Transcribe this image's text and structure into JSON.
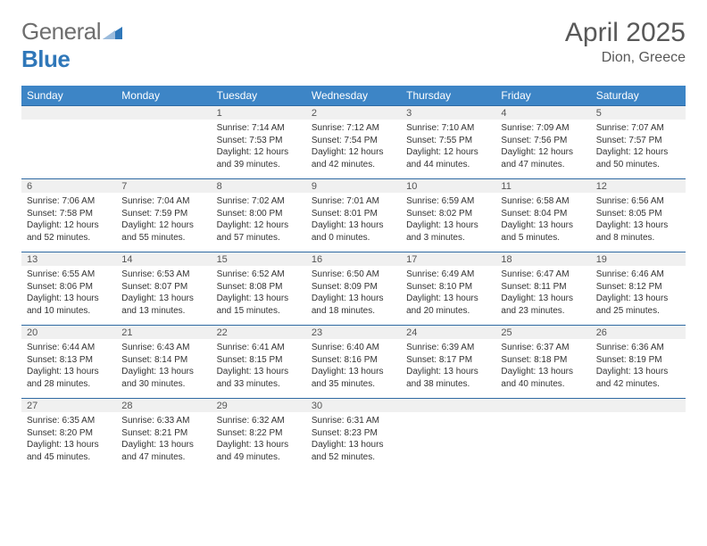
{
  "brand": {
    "name_part1": "General",
    "name_part2": "Blue"
  },
  "title": "April 2025",
  "location": "Dion, Greece",
  "colors": {
    "header_bg": "#3d85c6",
    "header_text": "#ffffff",
    "daynum_bg": "#f0f0f0",
    "logo_blue": "#2f77b9",
    "logo_gray": "#6e6e6e",
    "cell_border": "#2f6aa3"
  },
  "typography": {
    "month_title_size": 30,
    "location_size": 16,
    "weekday_size": 12,
    "daynum_size": 11,
    "body_size": 10
  },
  "weekdays": [
    "Sunday",
    "Monday",
    "Tuesday",
    "Wednesday",
    "Thursday",
    "Friday",
    "Saturday"
  ],
  "grid": [
    [
      {
        "empty": true
      },
      {
        "empty": true
      },
      {
        "day": "1",
        "sunrise": "Sunrise: 7:14 AM",
        "sunset": "Sunset: 7:53 PM",
        "daylight": "Daylight: 12 hours and 39 minutes."
      },
      {
        "day": "2",
        "sunrise": "Sunrise: 7:12 AM",
        "sunset": "Sunset: 7:54 PM",
        "daylight": "Daylight: 12 hours and 42 minutes."
      },
      {
        "day": "3",
        "sunrise": "Sunrise: 7:10 AM",
        "sunset": "Sunset: 7:55 PM",
        "daylight": "Daylight: 12 hours and 44 minutes."
      },
      {
        "day": "4",
        "sunrise": "Sunrise: 7:09 AM",
        "sunset": "Sunset: 7:56 PM",
        "daylight": "Daylight: 12 hours and 47 minutes."
      },
      {
        "day": "5",
        "sunrise": "Sunrise: 7:07 AM",
        "sunset": "Sunset: 7:57 PM",
        "daylight": "Daylight: 12 hours and 50 minutes."
      }
    ],
    [
      {
        "day": "6",
        "sunrise": "Sunrise: 7:06 AM",
        "sunset": "Sunset: 7:58 PM",
        "daylight": "Daylight: 12 hours and 52 minutes."
      },
      {
        "day": "7",
        "sunrise": "Sunrise: 7:04 AM",
        "sunset": "Sunset: 7:59 PM",
        "daylight": "Daylight: 12 hours and 55 minutes."
      },
      {
        "day": "8",
        "sunrise": "Sunrise: 7:02 AM",
        "sunset": "Sunset: 8:00 PM",
        "daylight": "Daylight: 12 hours and 57 minutes."
      },
      {
        "day": "9",
        "sunrise": "Sunrise: 7:01 AM",
        "sunset": "Sunset: 8:01 PM",
        "daylight": "Daylight: 13 hours and 0 minutes."
      },
      {
        "day": "10",
        "sunrise": "Sunrise: 6:59 AM",
        "sunset": "Sunset: 8:02 PM",
        "daylight": "Daylight: 13 hours and 3 minutes."
      },
      {
        "day": "11",
        "sunrise": "Sunrise: 6:58 AM",
        "sunset": "Sunset: 8:04 PM",
        "daylight": "Daylight: 13 hours and 5 minutes."
      },
      {
        "day": "12",
        "sunrise": "Sunrise: 6:56 AM",
        "sunset": "Sunset: 8:05 PM",
        "daylight": "Daylight: 13 hours and 8 minutes."
      }
    ],
    [
      {
        "day": "13",
        "sunrise": "Sunrise: 6:55 AM",
        "sunset": "Sunset: 8:06 PM",
        "daylight": "Daylight: 13 hours and 10 minutes."
      },
      {
        "day": "14",
        "sunrise": "Sunrise: 6:53 AM",
        "sunset": "Sunset: 8:07 PM",
        "daylight": "Daylight: 13 hours and 13 minutes."
      },
      {
        "day": "15",
        "sunrise": "Sunrise: 6:52 AM",
        "sunset": "Sunset: 8:08 PM",
        "daylight": "Daylight: 13 hours and 15 minutes."
      },
      {
        "day": "16",
        "sunrise": "Sunrise: 6:50 AM",
        "sunset": "Sunset: 8:09 PM",
        "daylight": "Daylight: 13 hours and 18 minutes."
      },
      {
        "day": "17",
        "sunrise": "Sunrise: 6:49 AM",
        "sunset": "Sunset: 8:10 PM",
        "daylight": "Daylight: 13 hours and 20 minutes."
      },
      {
        "day": "18",
        "sunrise": "Sunrise: 6:47 AM",
        "sunset": "Sunset: 8:11 PM",
        "daylight": "Daylight: 13 hours and 23 minutes."
      },
      {
        "day": "19",
        "sunrise": "Sunrise: 6:46 AM",
        "sunset": "Sunset: 8:12 PM",
        "daylight": "Daylight: 13 hours and 25 minutes."
      }
    ],
    [
      {
        "day": "20",
        "sunrise": "Sunrise: 6:44 AM",
        "sunset": "Sunset: 8:13 PM",
        "daylight": "Daylight: 13 hours and 28 minutes."
      },
      {
        "day": "21",
        "sunrise": "Sunrise: 6:43 AM",
        "sunset": "Sunset: 8:14 PM",
        "daylight": "Daylight: 13 hours and 30 minutes."
      },
      {
        "day": "22",
        "sunrise": "Sunrise: 6:41 AM",
        "sunset": "Sunset: 8:15 PM",
        "daylight": "Daylight: 13 hours and 33 minutes."
      },
      {
        "day": "23",
        "sunrise": "Sunrise: 6:40 AM",
        "sunset": "Sunset: 8:16 PM",
        "daylight": "Daylight: 13 hours and 35 minutes."
      },
      {
        "day": "24",
        "sunrise": "Sunrise: 6:39 AM",
        "sunset": "Sunset: 8:17 PM",
        "daylight": "Daylight: 13 hours and 38 minutes."
      },
      {
        "day": "25",
        "sunrise": "Sunrise: 6:37 AM",
        "sunset": "Sunset: 8:18 PM",
        "daylight": "Daylight: 13 hours and 40 minutes."
      },
      {
        "day": "26",
        "sunrise": "Sunrise: 6:36 AM",
        "sunset": "Sunset: 8:19 PM",
        "daylight": "Daylight: 13 hours and 42 minutes."
      }
    ],
    [
      {
        "day": "27",
        "sunrise": "Sunrise: 6:35 AM",
        "sunset": "Sunset: 8:20 PM",
        "daylight": "Daylight: 13 hours and 45 minutes."
      },
      {
        "day": "28",
        "sunrise": "Sunrise: 6:33 AM",
        "sunset": "Sunset: 8:21 PM",
        "daylight": "Daylight: 13 hours and 47 minutes."
      },
      {
        "day": "29",
        "sunrise": "Sunrise: 6:32 AM",
        "sunset": "Sunset: 8:22 PM",
        "daylight": "Daylight: 13 hours and 49 minutes."
      },
      {
        "day": "30",
        "sunrise": "Sunrise: 6:31 AM",
        "sunset": "Sunset: 8:23 PM",
        "daylight": "Daylight: 13 hours and 52 minutes."
      },
      {
        "empty": true
      },
      {
        "empty": true
      },
      {
        "empty": true
      }
    ]
  ]
}
